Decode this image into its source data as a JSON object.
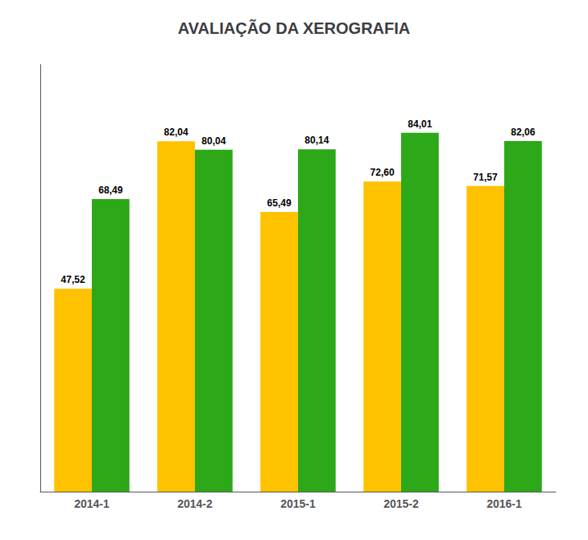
{
  "chart_data": {
    "type": "bar",
    "title": "AVALIAÇÃO DA XEROGRAFIA",
    "categories": [
      "2014-1",
      "2014-2",
      "2015-1",
      "2015-2",
      "2016-1"
    ],
    "series": [
      {
        "color": "#FFC200",
        "values": [
          47.52,
          82.04,
          65.49,
          72.6,
          71.57
        ],
        "value_labels": [
          "47,52",
          "82,04",
          "65,49",
          "72,60",
          "71,57"
        ]
      },
      {
        "color": "#2CA818",
        "values": [
          68.49,
          80.04,
          80.14,
          84.01,
          82.06
        ],
        "value_labels": [
          "68,49",
          "80,04",
          "80,14",
          "84,01",
          "82,06"
        ]
      }
    ],
    "ylim": [
      0,
      100
    ],
    "grid": false,
    "data_labels": true,
    "tick_labels": "x"
  }
}
